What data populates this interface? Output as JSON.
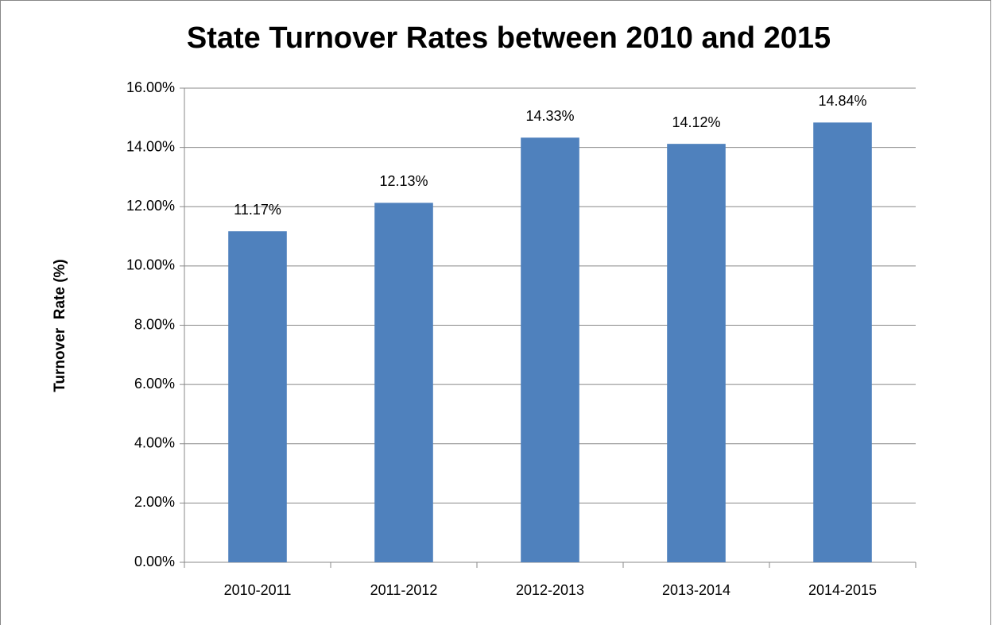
{
  "chart_data": {
    "type": "bar",
    "title": "State Turnover Rates between 2010 and 2015",
    "y_label": "Turnover  Rate (%)",
    "categories": [
      "2010-2011",
      "2011-2012",
      "2012-2013",
      "2013-2014",
      "2014-2015"
    ],
    "values": [
      11.17,
      12.13,
      14.33,
      14.12,
      14.84
    ],
    "value_labels": [
      "11.17%",
      "12.13%",
      "14.33%",
      "14.12%",
      "14.84%"
    ],
    "color": "#4f81bd",
    "ylim": [
      0,
      16
    ],
    "yticks": [
      {
        "value": 0,
        "label": "0.00%"
      },
      {
        "value": 2,
        "label": "2.00%"
      },
      {
        "value": 4,
        "label": "4.00%"
      },
      {
        "value": 6,
        "label": "6.00%"
      },
      {
        "value": 8,
        "label": "8.00%"
      },
      {
        "value": 10,
        "label": "10.00%"
      },
      {
        "value": 12,
        "label": "12.00%"
      },
      {
        "value": 14,
        "label": "14.00%"
      },
      {
        "value": 16,
        "label": "16.00%"
      }
    ],
    "grid": true
  }
}
